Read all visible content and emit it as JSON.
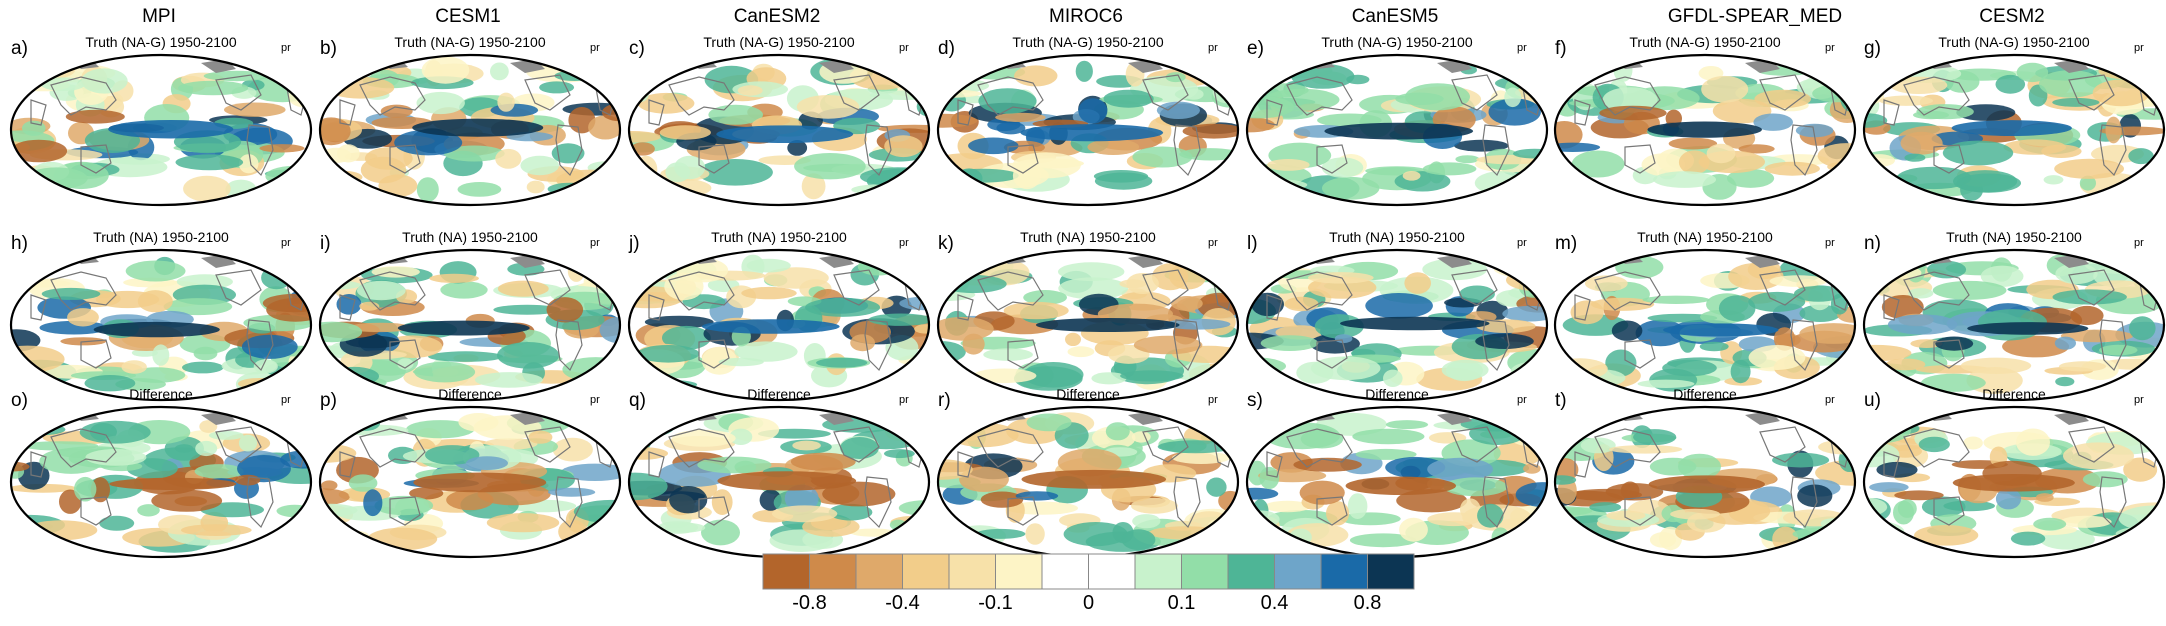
{
  "chart_data": {
    "type": "heatmap",
    "variable": "pr",
    "columns": [
      "MPI",
      "CESM1",
      "CanESM2",
      "MIROC6",
      "CanESM5",
      "GFDL-SPEAR_MED",
      "CESM2"
    ],
    "rows": [
      "Truth (NA-G) 1950-2100",
      "Truth (NA) 1950-2100",
      "Difference"
    ],
    "panel_letters": [
      "a)",
      "b)",
      "c)",
      "d)",
      "e)",
      "f)",
      "g)",
      "h)",
      "i)",
      "j)",
      "k)",
      "l)",
      "m)",
      "n)",
      "o)",
      "p)",
      "q)",
      "r)",
      "s)",
      "t)",
      "u)"
    ],
    "colorbar": {
      "colors": [
        "#b3652b",
        "#cf8a4a",
        "#dfa96a",
        "#f2cd8a",
        "#f7e1a9",
        "#fdf4c6",
        "#ffffff",
        "#ffffff",
        "#c8f2cc",
        "#92dea8",
        "#4eb596",
        "#6ea5c9",
        "#1a6aa8",
        "#0c3553"
      ],
      "tick_labels": [
        "-0.8",
        "-0.4",
        "-0.1",
        "0",
        "0.1",
        "0.4",
        "0.8"
      ]
    }
  }
}
